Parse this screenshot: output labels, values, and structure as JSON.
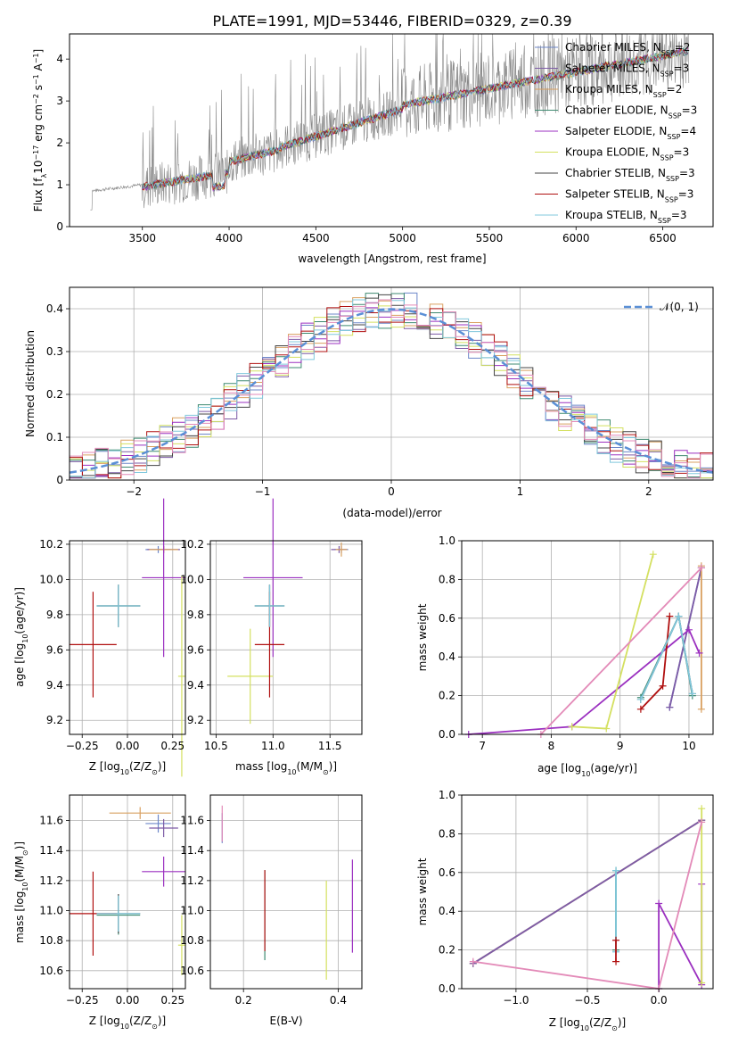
{
  "title": "PLATE=1991, MJD=53446, FIBERID=0329, z=0.39",
  "colors": {
    "chabrier_miles": "#6d87c9",
    "salpeter_miles": "#7d5ba6",
    "kroupa_miles": "#d9a060",
    "chabrier_elodie": "#3e8a70",
    "salpeter_elodie": "#9b30c0",
    "kroupa_elodie": "#d4e060",
    "chabrier_stelib": "#444444",
    "salpeter_stelib": "#b01010",
    "kroupa_stelib": "#80c8dc",
    "data": "#888888",
    "gauss": "#5a8fd6"
  },
  "chart_data": [
    {
      "id": "spectrum",
      "type": "line",
      "xlabel": "wavelength [Angstrom, rest frame]",
      "ylabel": "Flux [f",
      "ylabel_sub": "λ",
      "ylabel_rest": "10",
      "ylabel_sup1": "−17",
      "ylabel_mid": " erg cm",
      "ylabel_sup2": "−2",
      "ylabel_mid2": " s",
      "ylabel_sup3": "−1",
      "ylabel_mid3": " A",
      "ylabel_sup4": "−1",
      "ylabel_end": "]",
      "xlim": [
        3080,
        6790
      ],
      "ylim": [
        0,
        4.6
      ],
      "xticks": [
        3500,
        4000,
        4500,
        5000,
        5500,
        6000,
        6500
      ],
      "yticks": [
        0,
        1,
        2,
        3,
        4
      ],
      "legend": [
        {
          "name": "Chabrier MILES, N",
          "sub": "SSP",
          "tail": "=2"
        },
        {
          "name": "Salpeter MILES, N",
          "sub": "SSP",
          "tail": "=3"
        },
        {
          "name": "Kroupa MILES, N",
          "sub": "SSP",
          "tail": "=2"
        },
        {
          "name": "Chabrier ELODIE, N",
          "sub": "SSP",
          "tail": "=3"
        },
        {
          "name": "Salpeter ELODIE, N",
          "sub": "SSP",
          "tail": "=4"
        },
        {
          "name": "Kroupa ELODIE, N",
          "sub": "SSP",
          "tail": "=3"
        },
        {
          "name": "Chabrier STELIB, N",
          "sub": "SSP",
          "tail": "=3"
        },
        {
          "name": "Salpeter STELIB, N",
          "sub": "SSP",
          "tail": "=3"
        },
        {
          "name": "Kroupa STELIB, N",
          "sub": "SSP",
          "tail": "=3"
        }
      ],
      "legend_placement": "right",
      "data_range": [
        3200,
        6650
      ],
      "model_range": [
        3500,
        6650
      ]
    },
    {
      "id": "residuals",
      "type": "bar",
      "xlabel": "(data-model)/error",
      "ylabel": "Normed distribution",
      "xlim": [
        -2.5,
        2.5
      ],
      "ylim": [
        0,
        0.45
      ],
      "xticks": [
        -2,
        -1,
        0,
        1,
        2
      ],
      "yticks": [
        0.0,
        0.1,
        0.2,
        0.3,
        0.4
      ],
      "legend": "𝒩(0, 1)",
      "legend_placement": "top-right",
      "grid": true,
      "bins": 50
    },
    {
      "id": "age_vs_Z",
      "type": "scatter",
      "xlabel": "Z [log",
      "xlabel_sub": "10",
      "xlabel_rest": "(Z/Z",
      "xlabel_sub2": "⊙",
      "xlabel_end": ")]",
      "ylabel": "age  [log",
      "ylabel_sub": "10",
      "ylabel_rest": "(age/yr)]",
      "xlim": [
        -0.32,
        0.32
      ],
      "ylim": [
        9.12,
        10.22
      ],
      "xticks": [
        -0.25,
        0.0,
        0.25
      ],
      "xticklabels": [
        "−0.25",
        "0.00",
        "0.25"
      ],
      "yticks": [
        9.2,
        9.4,
        9.6,
        9.8,
        10.0,
        10.2
      ],
      "yticklabels": [
        "9.2",
        "9.4",
        "9.6",
        "9.8",
        "10.0",
        "10.2"
      ],
      "grid": true
    },
    {
      "id": "age_vs_mass",
      "type": "scatter",
      "xlabel": "mass [log",
      "xlabel_sub": "10",
      "xlabel_rest": "(M/M",
      "xlabel_sub2": "⊙",
      "xlabel_end": ")]",
      "xlim": [
        10.45,
        11.78
      ],
      "ylim": [
        9.12,
        10.22
      ],
      "xticks": [
        10.5,
        11.0,
        11.5
      ],
      "xticklabels": [
        "10.5",
        "11.0",
        "11.5"
      ],
      "yticks": [
        9.2,
        9.4,
        9.6,
        9.8,
        10.0,
        10.2
      ],
      "yticklabels": [
        "9.2",
        "9.4",
        "9.6",
        "9.8",
        "10.0",
        "10.2"
      ],
      "grid": true
    },
    {
      "id": "weight_vs_age",
      "type": "line",
      "xlabel": "age  [log",
      "xlabel_sub": "10",
      "xlabel_rest": "(age/yr)]",
      "ylabel": "mass weight",
      "xlim": [
        6.7,
        10.35
      ],
      "ylim": [
        0,
        1.0
      ],
      "xticks": [
        7,
        8,
        9,
        10
      ],
      "xticklabels": [
        "7",
        "8",
        "9",
        "10"
      ],
      "yticks": [
        0.0,
        0.2,
        0.4,
        0.6,
        0.8,
        1.0
      ],
      "yticklabels": [
        "0.0",
        "0.2",
        "0.4",
        "0.6",
        "0.8",
        "1.0"
      ],
      "grid": true,
      "series": [
        {
          "key": "chabrier_miles",
          "x": [
            9.72,
            10.18
          ],
          "y": [
            0.14,
            0.86
          ]
        },
        {
          "key": "salpeter_miles",
          "x": [
            9.72,
            10.18
          ],
          "y": [
            0.14,
            0.86
          ]
        },
        {
          "key": "kroupa_miles",
          "x": [
            10.18,
            10.18
          ],
          "y": [
            0.13,
            0.87
          ]
        },
        {
          "key": "chabrier_elodie",
          "x": [
            9.3,
            9.85,
            10.05
          ],
          "y": [
            0.19,
            0.61,
            0.2
          ]
        },
        {
          "key": "salpeter_elodie",
          "x": [
            6.8,
            8.3,
            10.0,
            10.15
          ],
          "y": [
            0.0,
            0.04,
            0.54,
            0.42
          ]
        },
        {
          "key": "kroupa_elodie",
          "x": [
            8.3,
            8.8,
            9.48
          ],
          "y": [
            0.04,
            0.03,
            0.93
          ]
        },
        {
          "key": "chabrier_stelib",
          "x": [
            9.3,
            9.85,
            10.05
          ],
          "y": [
            0.18,
            0.61,
            0.21
          ]
        },
        {
          "key": "salpeter_stelib",
          "x": [
            9.3,
            9.62,
            9.72
          ],
          "y": [
            0.13,
            0.25,
            0.61
          ]
        },
        {
          "key": "kroupa_stelib",
          "x": [
            9.3,
            9.85,
            10.05
          ],
          "y": [
            0.18,
            0.61,
            0.21
          ]
        },
        {
          "key": "kroupa_miles_alt",
          "x": [
            7.85,
            10.18
          ],
          "y": [
            0.0,
            0.86
          ]
        }
      ]
    },
    {
      "id": "mass_vs_Z",
      "type": "scatter",
      "xlabel": "Z [log",
      "xlabel_sub": "10",
      "xlabel_rest": "(Z/Z",
      "xlabel_sub2": "⊙",
      "xlabel_end": ")]",
      "ylabel": "mass [log",
      "ylabel_sub": "10",
      "ylabel_rest": "(M/M",
      "ylabel_sub2": "⊙",
      "ylabel_end": ")]",
      "xlim": [
        -0.32,
        0.32
      ],
      "ylim": [
        10.48,
        11.77
      ],
      "xticks": [
        -0.25,
        0.0,
        0.25
      ],
      "xticklabels": [
        "−0.25",
        "0.00",
        "0.25"
      ],
      "yticks": [
        10.6,
        10.8,
        11.0,
        11.2,
        11.4,
        11.6
      ],
      "yticklabels": [
        "10.6",
        "10.8",
        "11.0",
        "11.2",
        "11.4",
        "11.6"
      ],
      "grid": true
    },
    {
      "id": "mass_vs_ebv",
      "type": "scatter",
      "xlabel": "E(B-V)",
      "xlim": [
        0.13,
        0.45
      ],
      "ylim": [
        10.48,
        11.77
      ],
      "xticks": [
        0.2,
        0.4
      ],
      "xticklabels": [
        "0.2",
        "0.4"
      ],
      "yticks": [
        10.6,
        10.8,
        11.0,
        11.2,
        11.4,
        11.6
      ],
      "yticklabels": [
        "10.6",
        "10.8",
        "11.0",
        "11.2",
        "11.4",
        "11.6"
      ],
      "grid": true
    },
    {
      "id": "weight_vs_Z",
      "type": "line",
      "xlabel": "Z [log",
      "xlabel_sub": "10",
      "xlabel_rest": "(Z/Z",
      "xlabel_sub2": "⊙",
      "xlabel_end": ")]",
      "ylabel": "mass weight",
      "xlim": [
        -1.38,
        0.38
      ],
      "ylim": [
        0,
        1.0
      ],
      "xticks": [
        -1.0,
        -0.5,
        0.0
      ],
      "xticklabels": [
        "−1.0",
        "−0.5",
        "0.0"
      ],
      "yticks": [
        0.0,
        0.2,
        0.4,
        0.6,
        0.8,
        1.0
      ],
      "yticklabels": [
        "0.0",
        "0.2",
        "0.4",
        "0.6",
        "0.8",
        "1.0"
      ],
      "grid": true,
      "series": [
        {
          "key": "chabrier_miles",
          "x": [
            -1.3,
            0.3
          ],
          "y": [
            0.13,
            0.87
          ]
        },
        {
          "key": "kroupa_miles",
          "x": [
            -1.3,
            0.3
          ],
          "y": [
            0.13,
            0.87
          ]
        },
        {
          "key": "salpeter_miles",
          "x": [
            -1.3,
            0.3
          ],
          "y": [
            0.13,
            0.87
          ]
        },
        {
          "key": "salpeter_elodie",
          "x": [
            0.0,
            0.0,
            0.3,
            0.3
          ],
          "y": [
            0.0,
            0.44,
            0.02,
            0.54
          ]
        },
        {
          "key": "kroupa_elodie",
          "x": [
            0.3,
            0.3
          ],
          "y": [
            0.03,
            0.93
          ]
        },
        {
          "key": "chabrier_elodie",
          "x": [
            -0.3,
            -0.3
          ],
          "y": [
            0.2,
            0.61
          ]
        },
        {
          "key": "kroupa_stelib",
          "x": [
            -0.3,
            -0.3
          ],
          "y": [
            0.19,
            0.61
          ]
        },
        {
          "key": "salpeter_stelib",
          "x": [
            -0.3,
            -0.3
          ],
          "y": [
            0.14,
            0.25
          ]
        },
        {
          "key": "kroupa_miles_alt",
          "x": [
            -1.3,
            0.0,
            0.3
          ],
          "y": [
            0.14,
            0.0,
            0.86
          ]
        }
      ]
    }
  ],
  "errbars_age_Z": [
    {
      "key": "chabrier_miles",
      "x": 0.17,
      "xe": 0.07,
      "y": 10.17,
      "ye": 0.02
    },
    {
      "key": "salpeter_miles",
      "x": 0.2,
      "xe": 0.09,
      "y": 10.17,
      "ye": 0.02
    },
    {
      "key": "kroupa_miles",
      "x": 0.2,
      "xe": 0.08,
      "y": 10.17,
      "ye": 0.02
    },
    {
      "key": "chabrier_elodie",
      "x": -0.05,
      "xe": 0.12,
      "y": 9.85,
      "ye": 0.12
    },
    {
      "key": "salpeter_elodie",
      "x": 0.2,
      "xe": 0.12,
      "y": 10.01,
      "ye": 0.45
    },
    {
      "key": "kroupa_elodie",
      "x": 0.3,
      "xe": 0.02,
      "y": 9.45,
      "ye": 0.57
    },
    {
      "key": "chabrier_stelib",
      "x": -0.05,
      "xe": 0.12,
      "y": 9.85,
      "ye": 0.12
    },
    {
      "key": "salpeter_stelib",
      "x": -0.19,
      "xe": 0.13,
      "y": 9.63,
      "ye": 0.3
    },
    {
      "key": "kroupa_stelib",
      "x": -0.05,
      "xe": 0.12,
      "y": 9.85,
      "ye": 0.12
    }
  ],
  "errbars_age_mass": [
    {
      "key": "chabrier_miles",
      "x": 11.6,
      "xe": 0.06,
      "y": 10.17,
      "ye": 0.02
    },
    {
      "key": "salpeter_miles",
      "x": 11.58,
      "xe": 0.07,
      "y": 10.17,
      "ye": 0.02
    },
    {
      "key": "kroupa_miles",
      "x": 11.6,
      "xe": 0.05,
      "y": 10.17,
      "ye": 0.04
    },
    {
      "key": "chabrier_elodie",
      "x": 10.97,
      "xe": 0.13,
      "y": 9.85,
      "ye": 0.12
    },
    {
      "key": "salpeter_elodie",
      "x": 11.0,
      "xe": 0.26,
      "y": 10.01,
      "ye": 0.45
    },
    {
      "key": "kroupa_elodie",
      "x": 10.8,
      "xe": 0.2,
      "y": 9.45,
      "ye": 0.27
    },
    {
      "key": "chabrier_stelib",
      "x": 10.97,
      "xe": 0.13,
      "y": 9.85,
      "ye": 0.12
    },
    {
      "key": "salpeter_stelib",
      "x": 10.97,
      "xe": 0.13,
      "y": 9.63,
      "ye": 0.3
    },
    {
      "key": "kroupa_stelib",
      "x": 10.97,
      "xe": 0.13,
      "y": 9.85,
      "ye": 0.12
    }
  ],
  "errbars_mass_Z": [
    {
      "key": "chabrier_miles",
      "x": 0.17,
      "xe": 0.07,
      "y": 11.58,
      "ye": 0.06
    },
    {
      "key": "salpeter_miles",
      "x": 0.2,
      "xe": 0.08,
      "y": 11.55,
      "ye": 0.06
    },
    {
      "key": "kroupa_miles",
      "x": 0.07,
      "xe": 0.17,
      "y": 11.65,
      "ye": 0.04
    },
    {
      "key": "chabrier_elodie",
      "x": -0.05,
      "xe": 0.12,
      "y": 10.97,
      "ye": 0.13
    },
    {
      "key": "salpeter_elodie",
      "x": 0.2,
      "xe": 0.12,
      "y": 11.26,
      "ye": 0.1
    },
    {
      "key": "kroupa_elodie",
      "x": 0.3,
      "xe": 0.02,
      "y": 10.77,
      "ye": 0.2
    },
    {
      "key": "chabrier_stelib",
      "x": -0.05,
      "xe": 0.12,
      "y": 10.98,
      "ye": 0.13
    },
    {
      "key": "salpeter_stelib",
      "x": -0.19,
      "xe": 0.13,
      "y": 10.98,
      "ye": 0.28
    },
    {
      "key": "kroupa_stelib",
      "x": -0.05,
      "xe": 0.12,
      "y": 10.98,
      "ye": 0.12
    }
  ],
  "errbars_mass_ebv": [
    {
      "key": "chabrier_miles",
      "x": 0.155,
      "y": 11.55,
      "ye": 0.1
    },
    {
      "key": "kroupa_miles_alt",
      "x": 0.155,
      "y": 11.58,
      "ye": 0.12
    },
    {
      "key": "chabrier_elodie",
      "x": 0.245,
      "y": 10.97,
      "ye": 0.3
    },
    {
      "key": "salpeter_stelib",
      "x": 0.245,
      "y": 11.0,
      "ye": 0.27
    },
    {
      "key": "kroupa_elodie",
      "x": 0.375,
      "y": 10.87,
      "ye": 0.33
    },
    {
      "key": "salpeter_elodie",
      "x": 0.43,
      "y": 11.03,
      "ye": 0.31
    }
  ]
}
